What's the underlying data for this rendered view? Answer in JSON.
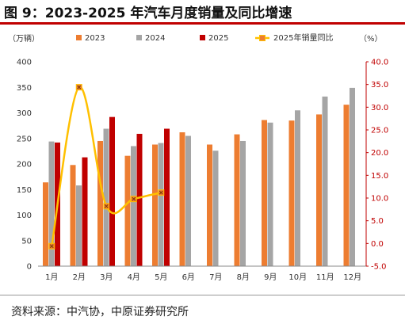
{
  "header": {
    "title": "图 9：2023-2025 年汽车月度销量及同比增速"
  },
  "footer": {
    "source": "资料来源：中汽协，中原证券研究所"
  },
  "chart_data": {
    "type": "bar",
    "categories": [
      "1月",
      "2月",
      "3月",
      "4月",
      "5月",
      "6月",
      "7月",
      "8月",
      "9月",
      "10月",
      "11月",
      "12月"
    ],
    "left_axis": {
      "unit": "（万辆）",
      "range": [
        0,
        400
      ],
      "ticks": [
        0,
        50,
        100,
        150,
        200,
        250,
        300,
        350,
        400
      ]
    },
    "right_axis": {
      "unit": "（%）",
      "range": [
        -5,
        40
      ],
      "ticks": [
        "-5.0",
        "0.0",
        "5.0",
        "10.0",
        "15.0",
        "20.0",
        "25.0",
        "30.0",
        "35.0",
        "40.0"
      ]
    },
    "series": [
      {
        "name": "2023",
        "type": "bar",
        "color": "#ed7d31",
        "values": [
          164,
          198,
          245,
          216,
          238,
          262,
          238,
          258,
          286,
          285,
          297,
          316
        ]
      },
      {
        "name": "2024",
        "type": "bar",
        "color": "#a5a5a5",
        "values": [
          244,
          158,
          269,
          235,
          241,
          255,
          226,
          245,
          281,
          305,
          332,
          349
        ]
      },
      {
        "name": "2025",
        "type": "bar",
        "color": "#c00000",
        "values": [
          242,
          213,
          292,
          259,
          269,
          null,
          null,
          null,
          null,
          null,
          null,
          null
        ]
      },
      {
        "name": "2025年销量同比",
        "type": "line",
        "axis": "right",
        "color": "#ffc000",
        "marker_color": "#ed7d31",
        "values": [
          -0.6,
          34.4,
          8.2,
          9.8,
          11.2,
          null,
          null,
          null,
          null,
          null,
          null,
          null
        ]
      }
    ],
    "legend_position": "top",
    "grid": false
  }
}
